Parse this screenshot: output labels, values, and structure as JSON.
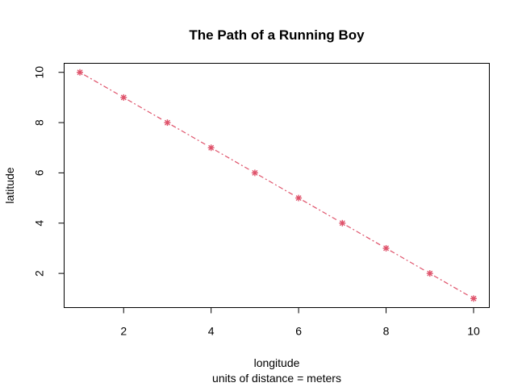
{
  "chart_data": {
    "type": "line",
    "title": "The Path of a Running Boy",
    "xlabel": "longitude",
    "xsublabel": "units of distance = meters",
    "ylabel": "latitude",
    "x": [
      1,
      2,
      3,
      4,
      5,
      6,
      7,
      8,
      9,
      10
    ],
    "series": [
      {
        "values": [
          10,
          9,
          8,
          7,
          6,
          5,
          4,
          3,
          2,
          1
        ],
        "color": "#DF536B",
        "line_style": "dashed",
        "marker": "asterisk"
      }
    ],
    "xlim": [
      0.64,
      10.36
    ],
    "ylim": [
      0.64,
      10.36
    ],
    "xticks": [
      2,
      4,
      6,
      8,
      10
    ],
    "yticks": [
      2,
      4,
      6,
      8,
      10
    ],
    "grid": false,
    "legend": "none"
  }
}
